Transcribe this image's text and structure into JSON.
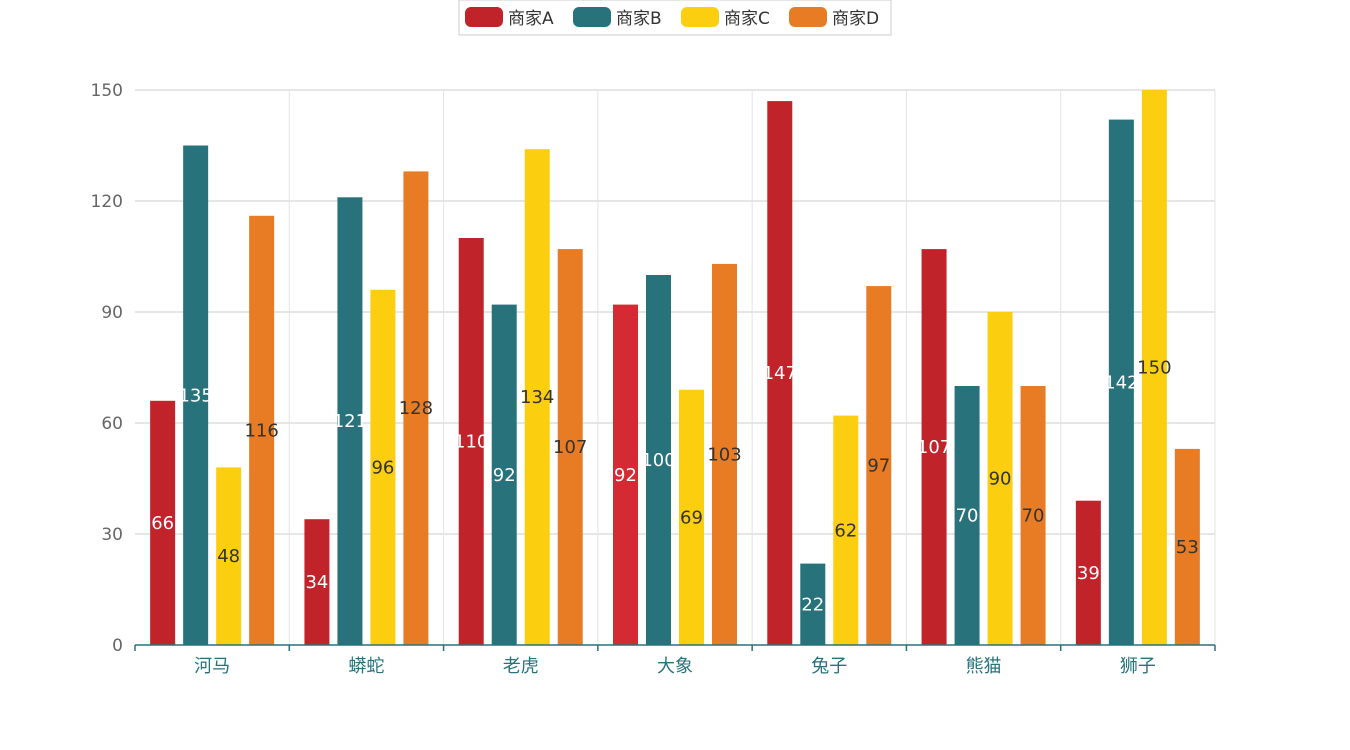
{
  "chart_data": {
    "type": "bar",
    "categories": [
      "河马",
      "蟒蛇",
      "老虎",
      "大象",
      "兔子",
      "熊猫",
      "狮子"
    ],
    "series": [
      {
        "name": "商家A",
        "color": "#c1232b",
        "values": [
          66,
          34,
          110,
          92,
          147,
          107,
          39
        ]
      },
      {
        "name": "商家B",
        "color": "#27727b",
        "values": [
          135,
          121,
          92,
          100,
          22,
          70,
          142
        ]
      },
      {
        "name": "商家C",
        "color": "#fcce10",
        "values": [
          48,
          96,
          134,
          69,
          62,
          90,
          150
        ]
      },
      {
        "name": "商家D",
        "color": "#e87c25",
        "values": [
          116,
          128,
          107,
          103,
          97,
          70,
          53
        ]
      }
    ],
    "ylim": [
      0,
      150
    ],
    "yticks": [
      0,
      30,
      60,
      90,
      120,
      150
    ],
    "grid": true,
    "legend_position": "top-center",
    "data_labels": "inside-middle",
    "highlight": {
      "series": 0,
      "category": 3,
      "color": "#d42a33"
    }
  }
}
